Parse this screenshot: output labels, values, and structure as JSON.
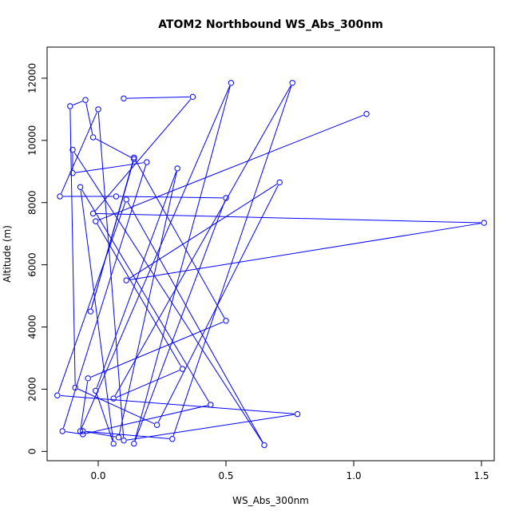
{
  "chart_data": {
    "type": "line",
    "title": "ATOM2 Northbound WS_Abs_300nm",
    "xlabel": "WS_Abs_300nm",
    "ylabel": "Altitude (m)",
    "xlim": [
      -0.2,
      1.55
    ],
    "ylim": [
      -300,
      13000
    ],
    "x_ticks": [
      "0.0",
      "0.5",
      "1.0",
      "1.5"
    ],
    "y_ticks": [
      "0",
      "2000",
      "4000",
      "6000",
      "8000",
      "10000",
      "12000"
    ],
    "grid": false,
    "line_color": "#0000ff",
    "marker": "open-circle",
    "series": [
      {
        "x": [
          0.1,
          0.37,
          -0.02,
          1.51,
          0.11,
          0.71,
          0.23,
          -0.09,
          -0.11,
          -0.05,
          -0.02,
          0.14,
          -0.03,
          0.14,
          0.5,
          -0.04,
          -0.07,
          0.52,
          0.14,
          0.5,
          0.07,
          -0.15,
          0.0,
          0.1,
          0.78,
          -0.16,
          0.11,
          0.65,
          -0.1,
          -0.1,
          0.19,
          -0.14,
          -0.06,
          0.44,
          -0.07,
          0.06,
          -0.01,
          0.31,
          0.08,
          -0.06,
          0.29,
          0.76,
          0.06,
          0.33,
          -0.01,
          1.05
        ],
        "y": [
          11350,
          11400,
          7650,
          7350,
          5500,
          8650,
          850,
          2050,
          11100,
          11300,
          10100,
          9400,
          4500,
          9450,
          4200,
          2350,
          650,
          11850,
          250,
          8150,
          8200,
          8200,
          11000,
          350,
          1200,
          1800,
          8100,
          200,
          9700,
          8950,
          9300,
          650,
          550,
          1500,
          8500,
          250,
          1950,
          9100,
          450,
          650,
          400,
          11850,
          1700,
          2650,
          7400,
          10850
        ]
      }
    ]
  }
}
